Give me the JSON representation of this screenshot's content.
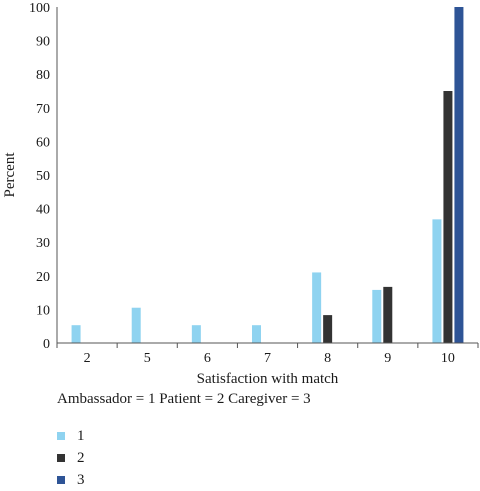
{
  "chart_data": {
    "type": "bar",
    "categories": [
      "2",
      "5",
      "6",
      "7",
      "8",
      "9",
      "10"
    ],
    "series": [
      {
        "name": "1",
        "color": "#8fd3f0",
        "values": [
          5.3,
          10.5,
          5.3,
          5.3,
          21.0,
          15.8,
          36.8
        ]
      },
      {
        "name": "2",
        "color": "#333333",
        "values": [
          0,
          0,
          0,
          0,
          8.3,
          16.7,
          75.0
        ]
      },
      {
        "name": "3",
        "color": "#2e5496",
        "values": [
          0,
          0,
          0,
          0,
          0,
          0,
          100
        ]
      }
    ],
    "title": "",
    "xlabel": "Satisfaction with match",
    "ylabel": "Percent",
    "ylim": [
      0,
      100
    ],
    "yticks": [
      0,
      10,
      20,
      30,
      40,
      50,
      60,
      70,
      80,
      90,
      100
    ],
    "grid": false,
    "legend_position": "bottom-left"
  },
  "note": "Ambassador = 1 Patient = 2 Caregiver = 3"
}
